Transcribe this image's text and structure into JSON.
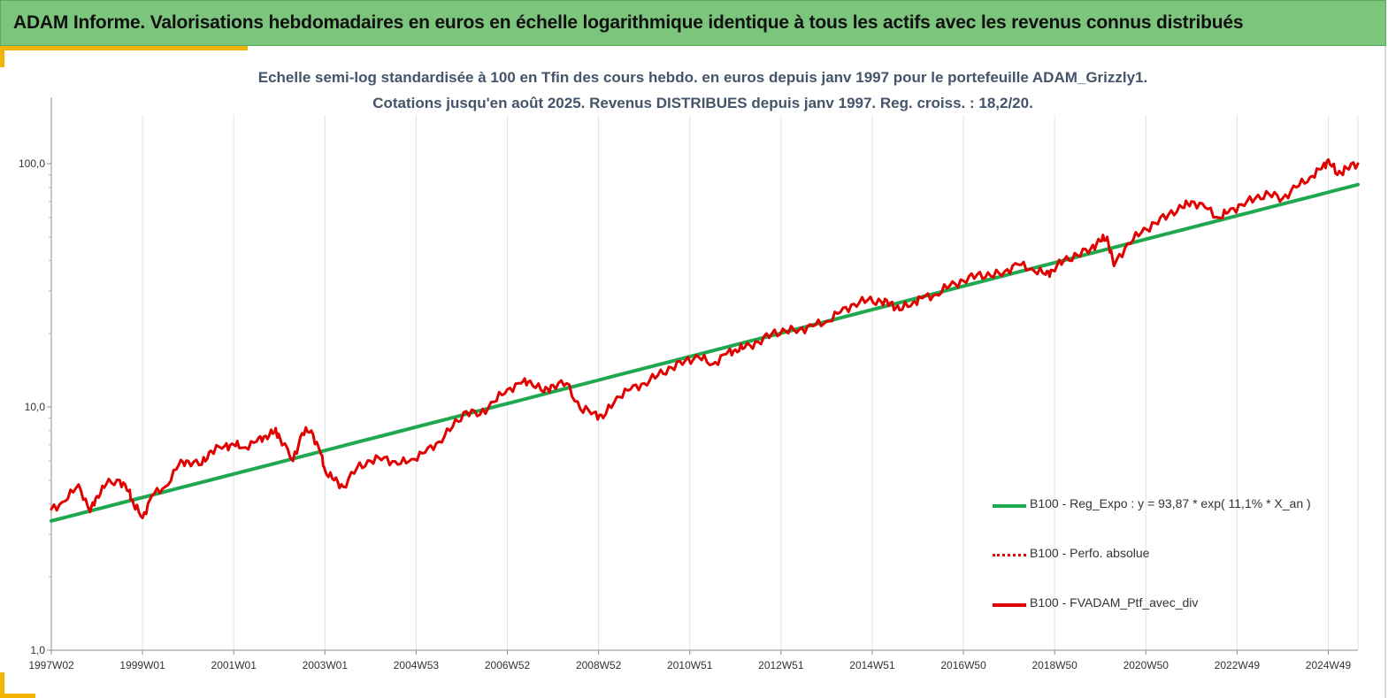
{
  "header": {
    "title": "ADAM Informe. Valorisations hebdomadaires en euros en échelle logarithmique identique à tous les actifs avec les revenus connus distribués"
  },
  "colors": {
    "banner": "#7cc57c",
    "accent": "#f2b400",
    "regression": "#1fa84f",
    "portfolio": "#e00000"
  },
  "chart_data": {
    "type": "line",
    "title": "Echelle semi-log standardisée à 100 en Tfin des cours hebdo. en euros depuis janv 1997 pour le portefeuille ADAM_Grizzly1.",
    "subtitle": "Cotations jusqu'en août 2025. Revenus DISTRIBUES depuis janv 1997. Reg. croiss. : 18,2/20.",
    "xlabel": "",
    "ylabel": "",
    "y_scale": "log",
    "ylim": [
      1,
      200
    ],
    "y_ticks": [
      1,
      10,
      100
    ],
    "y_tick_labels": [
      "1,0",
      "10,0",
      "100,0"
    ],
    "x_range": [
      1997.0,
      2025.65
    ],
    "x_tick_labels": [
      "1997W02",
      "1999W01",
      "2001W01",
      "2003W01",
      "2004W53",
      "2006W52",
      "2008W52",
      "2010W51",
      "2012W51",
      "2014W51",
      "2016W50",
      "2018W50",
      "2020W50",
      "2022W49",
      "2024W49"
    ],
    "x_tick_years": [
      1997.0,
      1999.0,
      2001.0,
      2003.0,
      2005.0,
      2007.0,
      2009.0,
      2011.0,
      2013.0,
      2015.0,
      2017.0,
      2019.0,
      2021.0,
      2023.0,
      2025.0
    ],
    "grid": "vertical",
    "legend_position": "bottom-right",
    "legend": [
      "B100 - Reg_Expo : y = 93,87 * exp( 11,1% *  X_an )",
      "B100 - Perfo. absolue",
      "B100 - FVADAM_Ptf_avec_div"
    ],
    "series": [
      {
        "name": "B100 - Reg_Expo : y = 93,87 * exp( 11,1% *  X_an )",
        "style": "solid",
        "x": [
          1997.0,
          2025.65
        ],
        "y": [
          3.4,
          82.0
        ]
      },
      {
        "name": "B100 - Perfo. absolue",
        "style": "dotted",
        "x": [],
        "y": []
      },
      {
        "name": "B100 - FVADAM_Ptf_avec_div",
        "style": "solid",
        "x": [
          1997.0,
          1997.3,
          1997.6,
          1997.85,
          1998.0,
          1998.2,
          1998.5,
          1998.7,
          1998.8,
          1999.0,
          1999.2,
          1999.5,
          1999.8,
          2000.0,
          2000.3,
          2000.5,
          2000.8,
          2001.0,
          2001.2,
          2001.5,
          2001.7,
          2001.9,
          2002.0,
          2002.3,
          2002.5,
          2002.7,
          2002.9,
          2003.0,
          2003.2,
          2003.4,
          2003.7,
          2004.0,
          2004.3,
          2004.6,
          2004.9,
          2005.2,
          2005.5,
          2005.8,
          2006.1,
          2006.4,
          2006.7,
          2007.0,
          2007.3,
          2007.5,
          2007.8,
          2008.0,
          2008.3,
          2008.6,
          2008.9,
          2009.1,
          2009.4,
          2009.7,
          2010.0,
          2010.3,
          2010.6,
          2010.9,
          2011.2,
          2011.5,
          2011.8,
          2012.0,
          2012.2,
          2012.5,
          2012.8,
          2013.1,
          2013.4,
          2013.7,
          2014.0,
          2014.3,
          2014.6,
          2014.9,
          2015.2,
          2015.4,
          2015.6,
          2015.9,
          2016.1,
          2016.4,
          2016.7,
          2017.0,
          2017.3,
          2017.6,
          2017.9,
          2018.2,
          2018.5,
          2018.8,
          2018.95,
          2019.2,
          2019.5,
          2019.8,
          2020.0,
          2020.15,
          2020.3,
          2020.6,
          2020.9,
          2021.2,
          2021.5,
          2021.8,
          2022.0,
          2022.3,
          2022.6,
          2022.8,
          2023.1,
          2023.4,
          2023.7,
          2024.0,
          2024.3,
          2024.6,
          2024.85,
          2025.0,
          2025.2,
          2025.4,
          2025.65
        ],
        "y": [
          3.8,
          4.1,
          4.8,
          3.7,
          4.3,
          4.8,
          5.0,
          4.5,
          4.0,
          3.5,
          4.3,
          4.7,
          5.8,
          6.0,
          5.8,
          6.6,
          6.9,
          7.0,
          6.8,
          7.2,
          7.6,
          7.9,
          7.6,
          6.0,
          7.8,
          8.0,
          6.5,
          5.5,
          5.0,
          4.7,
          5.6,
          6.0,
          6.2,
          5.8,
          6.1,
          6.5,
          7.2,
          8.3,
          9.6,
          9.3,
          10.5,
          11.8,
          12.5,
          12.8,
          11.5,
          12.3,
          12.5,
          9.8,
          9.5,
          9.0,
          11.0,
          11.8,
          12.5,
          13.5,
          14.5,
          15.5,
          16.0,
          15.0,
          16.5,
          17.2,
          17.5,
          18.5,
          20.0,
          20.5,
          20.8,
          21.5,
          22.5,
          24.5,
          26.5,
          27.5,
          27.0,
          26.8,
          25.0,
          27.0,
          28.0,
          29.0,
          31.5,
          33.0,
          35.0,
          34.5,
          36.0,
          38.5,
          37.0,
          35.0,
          36.5,
          40.0,
          42.0,
          45.0,
          48.0,
          50.0,
          38.0,
          47.0,
          52.0,
          57.0,
          62.0,
          66.0,
          70.0,
          66.0,
          60.0,
          63.0,
          68.0,
          72.0,
          75.0,
          72.0,
          80.0,
          88.0,
          95.0,
          104.0,
          90.0,
          96.0,
          100.0
        ]
      }
    ]
  }
}
